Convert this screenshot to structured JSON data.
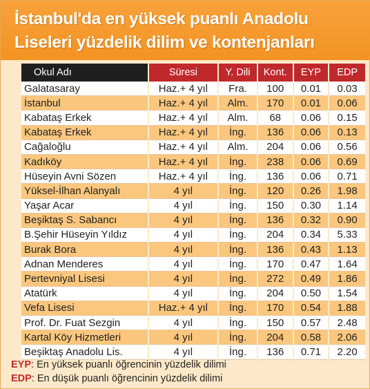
{
  "title_line1": "İstanbul'da en yüksek puanlı Anadolu",
  "title_line2": "Liseleri yüzdelik dilim ve kontenjanları",
  "columns": [
    "Okul Adı",
    "Süresi",
    "Y. Dili",
    "Kont.",
    "EYP",
    "EDP"
  ],
  "rows": [
    [
      "Galatasaray",
      "Haz.+ 4 yıl",
      "Fra.",
      "100",
      "0.01",
      "0.03"
    ],
    [
      "İstanbul",
      "Haz.+ 4 yıl",
      "Alm.",
      "170",
      "0.01",
      "0.06"
    ],
    [
      "Kabataş Erkek",
      "Haz.+ 4 yıl",
      "Alm.",
      "68",
      "0.06",
      "0.15"
    ],
    [
      "Kabataş Erkek",
      "Haz.+ 4 yıl",
      "İng.",
      "136",
      "0.06",
      "0.13"
    ],
    [
      "Cağaloğlu",
      "Haz.+ 4 yıl",
      "Alm.",
      "204",
      "0.06",
      "0.56"
    ],
    [
      "Kadıköy",
      "Haz.+ 4 yıl",
      "İng.",
      "238",
      "0.06",
      "0.69"
    ],
    [
      "Hüseyin Avni Sözen",
      "Haz.+ 4 yıl",
      "İng.",
      "136",
      "0.06",
      "0.71"
    ],
    [
      "Yüksel-İlhan Alanyalı",
      "4 yıl",
      "İng.",
      "120",
      "0.26",
      "1.98"
    ],
    [
      "Yaşar Acar",
      "4 yıl",
      "İng.",
      "150",
      "0.30",
      "1.14"
    ],
    [
      "Beşiktaş S. Sabancı",
      "4 yıl",
      "İng.",
      "136",
      "0.32",
      "0.90"
    ],
    [
      "B.Şehir Hüseyin Yıldız",
      "4 yıl",
      "İng.",
      "204",
      "0.34",
      "5.33"
    ],
    [
      "Burak Bora",
      "4 yıl",
      "İng.",
      "136",
      "0.43",
      "1.13"
    ],
    [
      "Adnan Menderes",
      "4 yıl",
      "İng.",
      "170",
      "0.47",
      "1.64"
    ],
    [
      "Pertevniyal Lisesi",
      "4 yıl",
      "İng.",
      "272",
      "0.49",
      "1.86"
    ],
    [
      "Atatürk",
      "4 yıl",
      "İng.",
      "204",
      "0.50",
      "1.54"
    ],
    [
      "Vefa Lisesi",
      "Haz.+ 4 yıl",
      "İng.",
      "170",
      "0.54",
      "1.88"
    ],
    [
      "Prof. Dr. Fuat Sezgin",
      "4 yıl",
      "İng.",
      "150",
      "0.57",
      "2.48"
    ],
    [
      "Kartal Köy Hizmetleri",
      "4 yıl",
      "İng.",
      "204",
      "0.58",
      "2.06"
    ],
    [
      "Beşiktaş Anadolu Lis.",
      "4 yıl",
      "İng.",
      "136",
      "0.71",
      "2.20"
    ]
  ],
  "legend": {
    "eyp_key": "EYP",
    "eyp_text": ": En yüksek puanlı öğrencinin yüzdelik dilimi",
    "edp_key": "EDP",
    "edp_text": ": En düşük puanlı öğrencinin yüzdelik dilimi"
  },
  "colors": {
    "header_orange": "#f39323",
    "red": "#c0292c",
    "row_alt": "#fbc77e"
  }
}
